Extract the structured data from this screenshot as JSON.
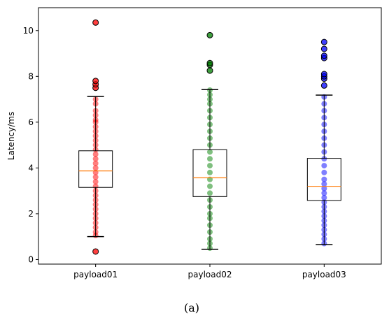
{
  "chart_data": {
    "type": "box",
    "ylabel": "Latency/ms",
    "ylim": [
      -0.2,
      11.0
    ],
    "yticks": [
      0,
      2,
      4,
      6,
      8,
      10
    ],
    "caption": "(a)",
    "categories": [
      "payload01",
      "payload02",
      "payload03"
    ],
    "series": [
      {
        "category": "payload01",
        "color": "#ff0000",
        "box": {
          "whisker_low": 1.0,
          "q1": 3.15,
          "median": 3.87,
          "q3": 4.75,
          "whisker_high": 7.12
        },
        "points": [
          0.35,
          1.05,
          1.2,
          1.4,
          1.6,
          1.8,
          2.0,
          2.2,
          2.4,
          2.6,
          2.8,
          3.0,
          3.2,
          3.4,
          3.6,
          3.8,
          4.0,
          4.2,
          4.4,
          4.6,
          4.8,
          5.0,
          5.2,
          5.4,
          5.6,
          5.8,
          6.0,
          6.1,
          6.3,
          6.5,
          6.8,
          7.0,
          7.5,
          7.65,
          7.8,
          10.35
        ],
        "outliers": [
          0.35,
          7.5,
          7.65,
          7.8,
          10.35
        ]
      },
      {
        "category": "payload02",
        "color": "#008000",
        "box": {
          "whisker_low": 0.45,
          "q1": 2.75,
          "median": 3.57,
          "q3": 4.8,
          "whisker_high": 7.42
        },
        "points": [
          0.5,
          0.7,
          0.9,
          1.2,
          1.5,
          1.8,
          2.0,
          2.3,
          2.6,
          2.9,
          3.2,
          3.5,
          3.8,
          4.1,
          4.4,
          4.7,
          5.0,
          5.3,
          5.6,
          5.9,
          6.2,
          6.5,
          6.8,
          7.0,
          7.2,
          7.4,
          8.25,
          8.5,
          8.58,
          9.8
        ],
        "outliers": [
          8.25,
          8.5,
          8.58,
          9.8
        ]
      },
      {
        "category": "payload03",
        "color": "#0000ff",
        "box": {
          "whisker_low": 0.65,
          "q1": 2.58,
          "median": 3.2,
          "q3": 4.42,
          "whisker_high": 7.18
        },
        "points": [
          0.7,
          0.9,
          1.1,
          1.3,
          1.5,
          1.7,
          1.9,
          2.1,
          2.3,
          2.5,
          2.7,
          2.9,
          3.1,
          3.3,
          3.5,
          3.8,
          4.1,
          4.4,
          4.7,
          5.0,
          5.3,
          5.6,
          5.9,
          6.2,
          6.5,
          6.8,
          7.1,
          7.6,
          7.9,
          8.0,
          8.1,
          8.8,
          8.9,
          9.2,
          9.5
        ],
        "outliers": [
          7.6,
          7.9,
          8.0,
          8.1,
          8.8,
          8.9,
          9.2,
          9.5
        ]
      }
    ]
  }
}
